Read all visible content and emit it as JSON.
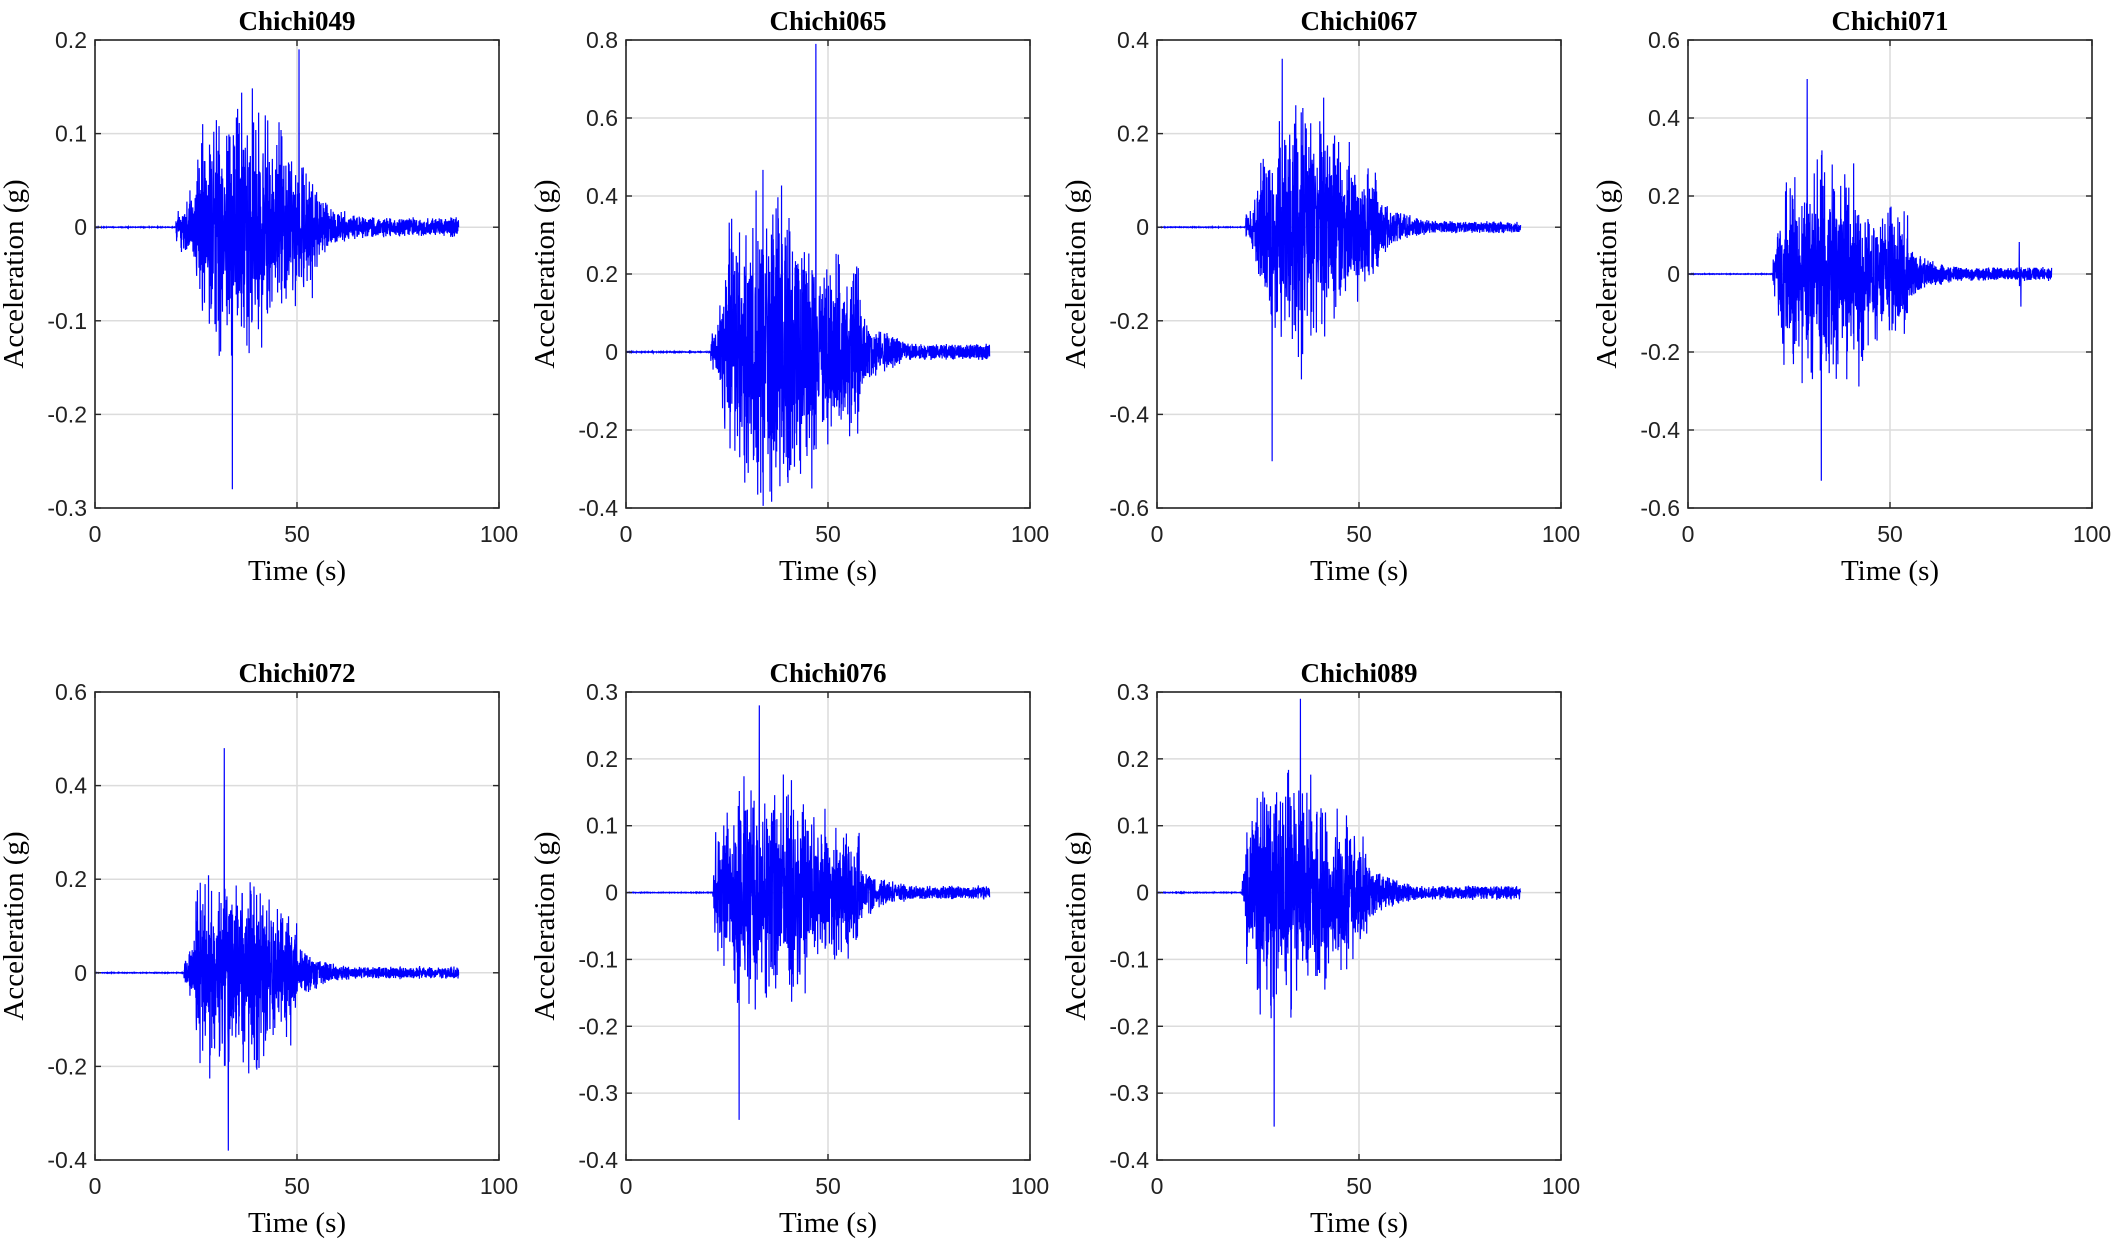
{
  "chart_data": [
    {
      "type": "line",
      "title": "Chichi049",
      "xlabel": "Time (s)",
      "ylabel": "Acceleration (g)",
      "xlim": [
        0,
        100
      ],
      "ylim": [
        -0.3,
        0.2
      ],
      "xticks": [
        0,
        50,
        100
      ],
      "yticks": [
        -0.3,
        -0.2,
        -0.1,
        0,
        0.1,
        0.2
      ],
      "ytick_labels": [
        "-0.3",
        "-0.2",
        "-0.1",
        "0",
        "0.1",
        "0.2"
      ],
      "grid": true,
      "line_color": "#0000ff",
      "record": {
        "duration_s": 90,
        "onset_s": 20,
        "strong_start_s": 25,
        "strong_end_s": 55,
        "peak_pos_g": 0.19,
        "peak_pos_t": 50.5,
        "peak_neg_g": -0.28,
        "peak_neg_t": 34,
        "coda_g": 0.012
      }
    },
    {
      "type": "line",
      "title": "Chichi065",
      "xlabel": "Time (s)",
      "ylabel": "Acceleration (g)",
      "xlim": [
        0,
        100
      ],
      "ylim": [
        -0.4,
        0.8
      ],
      "xticks": [
        0,
        50,
        100
      ],
      "yticks": [
        -0.4,
        -0.2,
        0,
        0.2,
        0.4,
        0.6,
        0.8
      ],
      "ytick_labels": [
        "-0.4",
        "-0.2",
        "0",
        "0.2",
        "0.4",
        "0.6",
        "0.8"
      ],
      "grid": true,
      "line_color": "#0000ff",
      "record": {
        "duration_s": 90,
        "onset_s": 21,
        "strong_start_s": 24,
        "strong_end_s": 58,
        "peak_pos_g": 0.79,
        "peak_pos_t": 47,
        "peak_neg_g": -0.35,
        "peak_neg_t": 46,
        "coda_g": 0.02
      }
    },
    {
      "type": "line",
      "title": "Chichi067",
      "xlabel": "Time (s)",
      "ylabel": "Acceleration (g)",
      "xlim": [
        0,
        100
      ],
      "ylim": [
        -0.6,
        0.4
      ],
      "xticks": [
        0,
        50,
        100
      ],
      "yticks": [
        -0.6,
        -0.4,
        -0.2,
        0,
        0.2,
        0.4
      ],
      "ytick_labels": [
        "-0.6",
        "-0.4",
        "-0.2",
        "0",
        "0.2",
        "0.4"
      ],
      "grid": true,
      "line_color": "#0000ff",
      "record": {
        "duration_s": 90,
        "onset_s": 22,
        "strong_start_s": 25,
        "strong_end_s": 55,
        "peak_pos_g": 0.36,
        "peak_pos_t": 31,
        "peak_neg_g": -0.5,
        "peak_neg_t": 28.5,
        "coda_g": 0.015
      }
    },
    {
      "type": "line",
      "title": "Chichi071",
      "xlabel": "Time (s)",
      "ylabel": "Acceleration (g)",
      "xlim": [
        0,
        100
      ],
      "ylim": [
        -0.6,
        0.6
      ],
      "xticks": [
        0,
        50,
        100
      ],
      "yticks": [
        -0.6,
        -0.4,
        -0.2,
        0,
        0.2,
        0.4,
        0.6
      ],
      "ytick_labels": [
        "-0.6",
        "-0.4",
        "-0.2",
        "0",
        "0.2",
        "0.4",
        "0.6"
      ],
      "grid": true,
      "line_color": "#0000ff",
      "record": {
        "duration_s": 90,
        "onset_s": 21,
        "strong_start_s": 22,
        "strong_end_s": 55,
        "peak_pos_g": 0.5,
        "peak_pos_t": 29.5,
        "peak_neg_g": -0.53,
        "peak_neg_t": 33,
        "coda_g": 0.02,
        "late_pulse_t": 82,
        "late_pulse_g": 0.11
      }
    },
    {
      "type": "line",
      "title": "Chichi072",
      "xlabel": "Time (s)",
      "ylabel": "Acceleration (g)",
      "xlim": [
        0,
        100
      ],
      "ylim": [
        -0.4,
        0.6
      ],
      "xticks": [
        0,
        50,
        100
      ],
      "yticks": [
        -0.4,
        -0.2,
        0,
        0.2,
        0.4,
        0.6
      ],
      "ytick_labels": [
        "-0.4",
        "-0.2",
        "0",
        "0.2",
        "0.4",
        "0.6"
      ],
      "grid": true,
      "line_color": "#0000ff",
      "record": {
        "duration_s": 90,
        "onset_s": 22,
        "strong_start_s": 25,
        "strong_end_s": 50,
        "peak_pos_g": 0.48,
        "peak_pos_t": 32,
        "peak_neg_g": -0.38,
        "peak_neg_t": 33,
        "coda_g": 0.015
      }
    },
    {
      "type": "line",
      "title": "Chichi076",
      "xlabel": "Time (s)",
      "ylabel": "Acceleration (g)",
      "xlim": [
        0,
        100
      ],
      "ylim": [
        -0.4,
        0.3
      ],
      "xticks": [
        0,
        50,
        100
      ],
      "yticks": [
        -0.4,
        -0.3,
        -0.2,
        -0.1,
        0,
        0.1,
        0.2,
        0.3
      ],
      "ytick_labels": [
        "-0.4",
        "-0.3",
        "-0.2",
        "-0.1",
        "0",
        "0.1",
        "0.2",
        "0.3"
      ],
      "grid": true,
      "line_color": "#0000ff",
      "record": {
        "duration_s": 90,
        "onset_s": 21.5,
        "strong_start_s": 22,
        "strong_end_s": 58,
        "peak_pos_g": 0.28,
        "peak_pos_t": 33,
        "peak_neg_g": -0.34,
        "peak_neg_t": 28,
        "coda_g": 0.012
      }
    },
    {
      "type": "line",
      "title": "Chichi089",
      "xlabel": "Time (s)",
      "ylabel": "Acceleration (g)",
      "xlim": [
        0,
        100
      ],
      "ylim": [
        -0.4,
        0.3
      ],
      "xticks": [
        0,
        50,
        100
      ],
      "yticks": [
        -0.4,
        -0.3,
        -0.2,
        -0.1,
        0,
        0.1,
        0.2,
        0.3
      ],
      "ytick_labels": [
        "-0.4",
        "-0.3",
        "-0.2",
        "-0.1",
        "0",
        "0.1",
        "0.2",
        "0.3"
      ],
      "grid": true,
      "line_color": "#0000ff",
      "record": {
        "duration_s": 90,
        "onset_s": 21,
        "strong_start_s": 22,
        "strong_end_s": 52,
        "peak_pos_g": 0.29,
        "peak_pos_t": 35.5,
        "peak_neg_g": -0.35,
        "peak_neg_t": 29,
        "coda_g": 0.012
      }
    }
  ]
}
